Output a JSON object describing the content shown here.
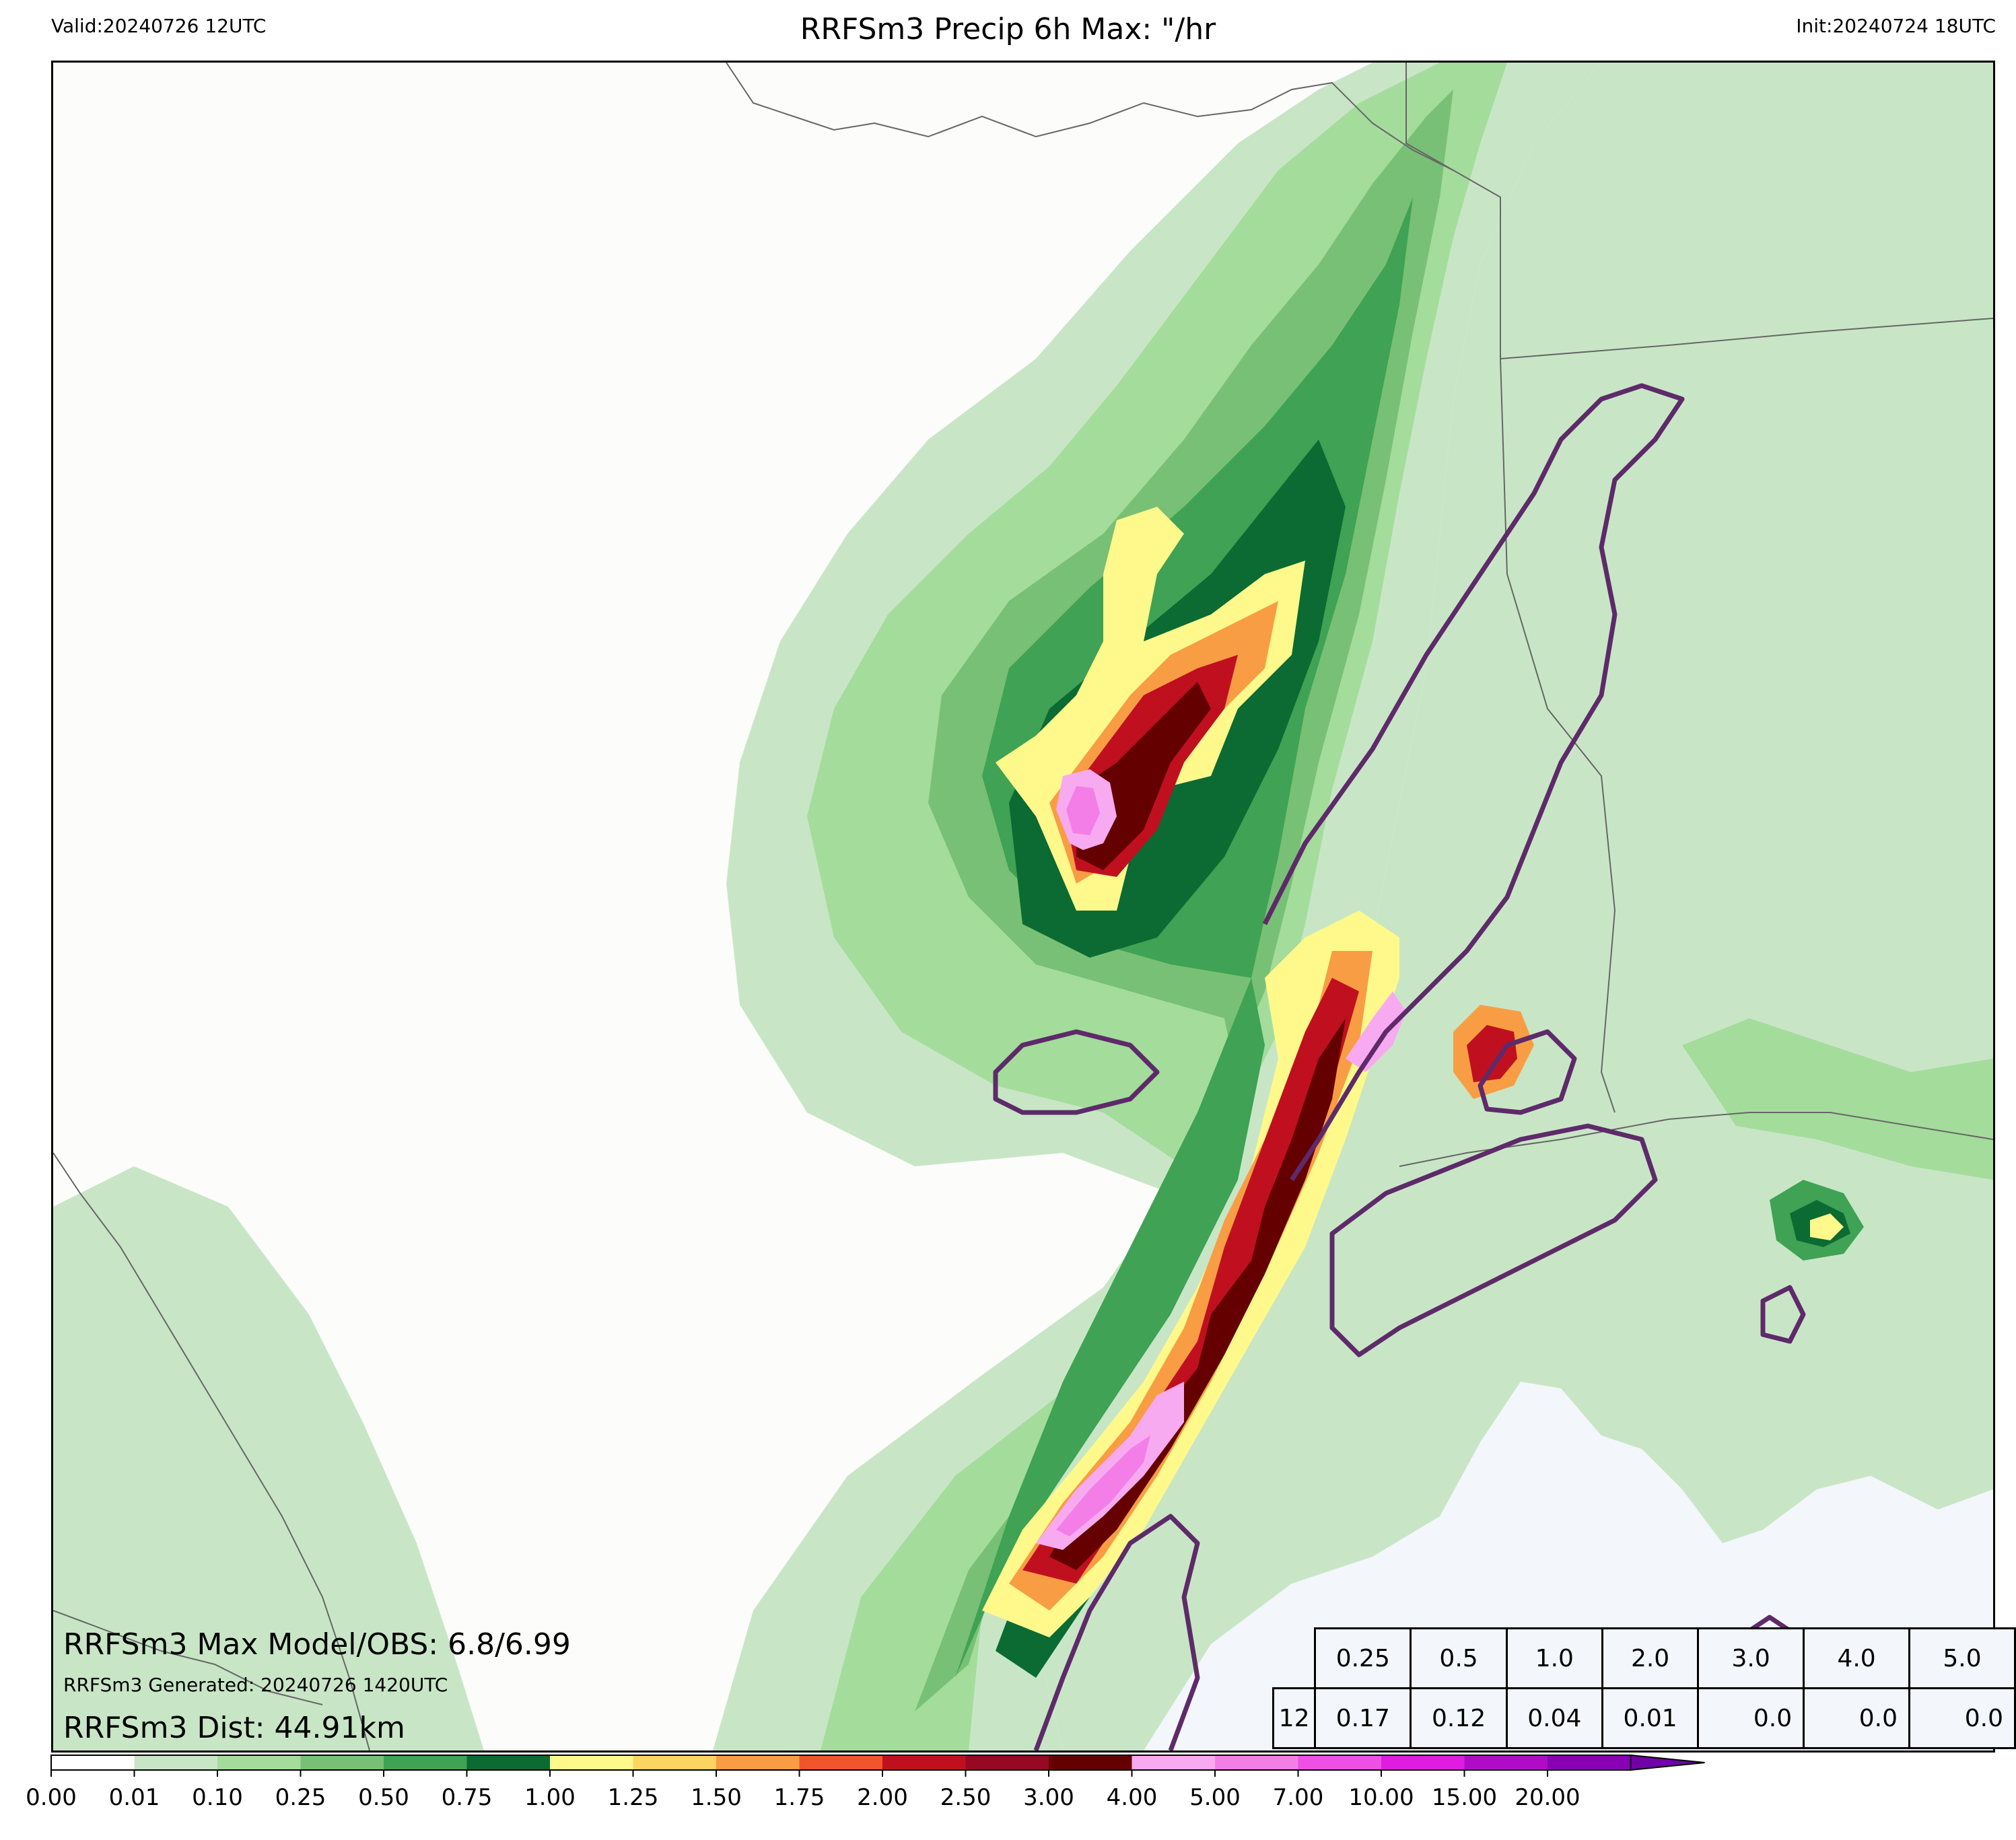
{
  "header": {
    "valid": "Valid:20240726 12UTC",
    "title": "RRFSm3 Precip 6h Max: \"/hr",
    "init": "Init:20240724 18UTC"
  },
  "annotations": {
    "max_model_obs": "RRFSm3 Max Model/OBS: 6.8/6.99",
    "generated": "RRFSm3 Generated: 20240726 1420UTC",
    "dist": "RRFSm3 Dist: 44.91km"
  },
  "stats_table": {
    "thresholds": [
      "0.25",
      "0.5",
      "1.0",
      "2.0",
      "3.0",
      "4.0",
      "5.0"
    ],
    "row_label": "12",
    "values": [
      "0.17",
      "0.12",
      "0.04",
      "0.01",
      "0.0",
      "0.0",
      "0.0"
    ]
  },
  "colorbar": {
    "ticks": [
      "0.00",
      "0.01",
      "0.10",
      "0.25",
      "0.50",
      "0.75",
      "1.00",
      "1.25",
      "1.50",
      "1.75",
      "2.00",
      "2.50",
      "3.00",
      "4.00",
      "5.00",
      "7.00",
      "10.00",
      "15.00",
      "20.00"
    ],
    "colors": [
      "#ffffff",
      "#c8e6c6",
      "#a4dc9c",
      "#78c075",
      "#3fa254",
      "#0b6b32",
      "#fff98c",
      "#fbd461",
      "#f89d44",
      "#f2542c",
      "#c0101f",
      "#960824",
      "#640000",
      "#f8aaf0",
      "#f47ee8",
      "#ee50e4",
      "#e01ce0",
      "#b00cc8",
      "#8a00b4"
    ],
    "extend_color": "#7200a8"
  },
  "map": {
    "land_color": "#fcfcfa",
    "water_color": "#f3f6fb",
    "contour_color": "#5e2a6a",
    "boundary_color": "#666666"
  }
}
